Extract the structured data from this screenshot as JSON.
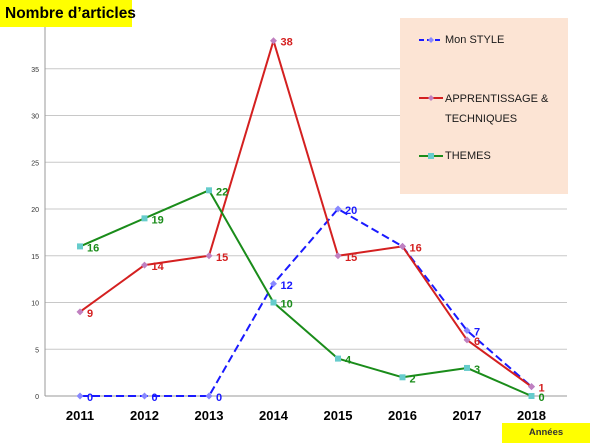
{
  "chart_data": {
    "type": "line",
    "title": "Nombre d’articles",
    "xlabel": "Années",
    "ylabel": "",
    "x": [
      "2011",
      "2012",
      "2013",
      "2014",
      "2015",
      "2016",
      "2017",
      "2018"
    ],
    "ylim": [
      0,
      40
    ],
    "yticks": [
      "0",
      "5",
      "10",
      "15",
      "20",
      "25",
      "30",
      "35"
    ],
    "grid": true,
    "legend_position": "top-right",
    "series": [
      {
        "name": "Mon STYLE",
        "values": [
          0,
          0,
          0,
          12,
          20,
          16,
          7,
          1
        ],
        "labels": [
          "0",
          "0",
          "0",
          "12",
          "20",
          "",
          "7",
          ""
        ],
        "color": "#1a1aff",
        "dash": "8,4",
        "marker": "diamond"
      },
      {
        "name": "APPRENTISSAGE & TECHNIQUES",
        "values": [
          9,
          14,
          15,
          38,
          15,
          16,
          6,
          1
        ],
        "labels": [
          "9",
          "14",
          "15",
          "38",
          "15",
          "16",
          "6",
          "1"
        ],
        "color": "#d42020",
        "dash": "",
        "marker": "diamond"
      },
      {
        "name": "THEMES",
        "values": [
          16,
          19,
          22,
          10,
          4,
          2,
          3,
          0
        ],
        "labels": [
          "16",
          "19",
          "22",
          "10",
          "4",
          "2",
          "3",
          "0"
        ],
        "color": "#1a8c1a",
        "dash": "",
        "marker": "square"
      }
    ]
  }
}
